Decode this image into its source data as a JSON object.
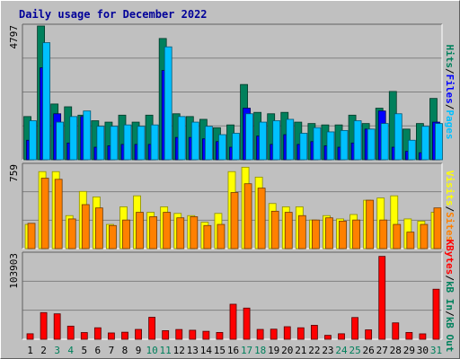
{
  "chart_data": {
    "type": "bar",
    "title": "Daily usage for December 2022",
    "categories": [
      "1",
      "2",
      "3",
      "4",
      "5",
      "6",
      "7",
      "8",
      "9",
      "10",
      "11",
      "12",
      "13",
      "14",
      "15",
      "16",
      "17",
      "18",
      "19",
      "20",
      "21",
      "22",
      "23",
      "24",
      "25",
      "26",
      "27",
      "28",
      "29",
      "30",
      "31"
    ],
    "weekend_days": [
      "3",
      "4",
      "10",
      "11",
      "17",
      "18",
      "24",
      "25",
      "31"
    ],
    "panels": [
      {
        "id": "hits",
        "axis_max_label": "4797",
        "ylim": [
          0,
          4797
        ],
        "legend": [
          {
            "text": "Hits",
            "color": "#00805c"
          },
          {
            "text": "/",
            "color": "#000000"
          },
          {
            "text": "Files",
            "color": "#0000ff"
          },
          {
            "text": "/",
            "color": "#000000"
          },
          {
            "text": "Pages",
            "color": "#00c0ff"
          }
        ],
        "series": [
          {
            "name": "Hits",
            "color": "#00805c",
            "values": [
              1550,
              4797,
              2000,
              1900,
              1600,
              1400,
              1350,
              1600,
              1350,
              1600,
              4350,
              1650,
              1550,
              1450,
              1150,
              1250,
              2700,
              1700,
              1650,
              1700,
              1350,
              1300,
              1250,
              1250,
              1600,
              1300,
              1850,
              2450,
              1100,
              1300,
              2200
            ]
          },
          {
            "name": "Files",
            "color": "#0000ff",
            "values": [
              700,
              3300,
              1650,
              600,
              1550,
              450,
              500,
              550,
              550,
              550,
              3200,
              800,
              800,
              750,
              650,
              450,
              1850,
              850,
              550,
              900,
              550,
              650,
              500,
              450,
              600,
              1100,
              1750,
              450,
              300,
              250,
              1350
            ]
          },
          {
            "name": "Pages",
            "color": "#00c0ff",
            "values": [
              1400,
              4200,
              1350,
              1550,
              1750,
              1200,
              1200,
              1250,
              1200,
              1250,
              4050,
              1550,
              1350,
              1200,
              900,
              950,
              1650,
              1350,
              1400,
              1450,
              950,
              1150,
              1000,
              1050,
              1400,
              1100,
              1300,
              1650,
              700,
              1200,
              1300
            ]
          }
        ]
      },
      {
        "id": "visits",
        "axis_max_label": "759",
        "ylim": [
          0,
          759
        ],
        "legend": [
          {
            "text": "Visits",
            "color": "#ffff00"
          },
          {
            "text": "/",
            "color": "#000000"
          },
          {
            "text": "Sites",
            "color": "#ff8000"
          }
        ],
        "series": [
          {
            "name": "Visits",
            "color": "#ffff00",
            "values": [
              220,
              700,
              700,
              300,
              520,
              470,
              220,
              380,
              480,
              330,
              380,
              320,
              300,
              240,
              320,
              700,
              740,
              650,
              410,
              380,
              380,
              260,
              300,
              270,
              310,
              440,
              460,
              480,
              270,
              250,
              330
            ]
          },
          {
            "name": "Sites",
            "color": "#ff8000",
            "values": [
              230,
              640,
              630,
              270,
              400,
              370,
              210,
              260,
              330,
              290,
              330,
              280,
              290,
              210,
              220,
              510,
              590,
              550,
              340,
              330,
              300,
              260,
              280,
              250,
              260,
              440,
              260,
              220,
              150,
              220,
              370
            ]
          }
        ]
      },
      {
        "id": "kbytes",
        "axis_max_label": "103903",
        "ylim": [
          0,
          103903
        ],
        "legend": [
          {
            "text": "KBytes",
            "color": "#ff0000"
          },
          {
            "text": "/",
            "color": "#000000"
          },
          {
            "text": "kB In",
            "color": "#00805c"
          },
          {
            "text": "/",
            "color": "#000000"
          },
          {
            "text": "kB Out",
            "color": "#00805c"
          }
        ],
        "series": [
          {
            "name": "KBytes",
            "color": "#ff0000",
            "values": [
              6700,
              32500,
              31000,
              16000,
              8200,
              14000,
              7700,
              8600,
              12000,
              26800,
              10500,
              11900,
              11000,
              9700,
              8300,
              42700,
              38000,
              12000,
              12300,
              15300,
              14000,
              17000,
              4800,
              6700,
              26500,
              11500,
              101000,
              20000,
              8300,
              6600,
              61000
            ]
          }
        ]
      }
    ]
  }
}
